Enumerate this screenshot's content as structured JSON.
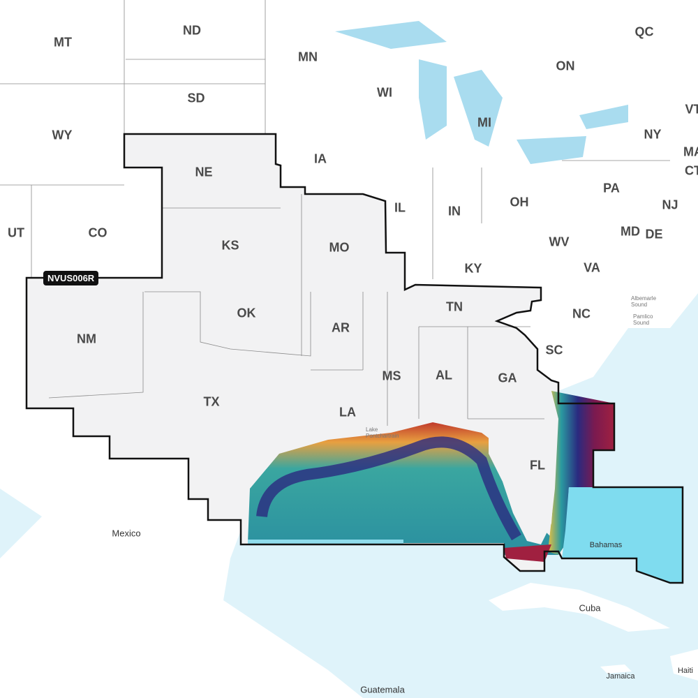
{
  "product_badge": "NVUS006R",
  "colors": {
    "water": "#dff3fa",
    "land": "#ffffff",
    "coverage_fill": "#f2f2f3",
    "coverage_border": "#111111",
    "shallow_bank": "#7fdcef"
  },
  "states": {
    "MT": "MT",
    "ND": "ND",
    "MN": "MN",
    "QC": "QC",
    "ON": "ON",
    "WI": "WI",
    "SD": "SD",
    "WY": "WY",
    "MI": "MI",
    "NY": "NY",
    "VT": "VT",
    "MA": "MA",
    "CT": "CT",
    "IA": "IA",
    "NE": "NE",
    "PA": "PA",
    "NJ": "NJ",
    "UT": "UT",
    "CO": "CO",
    "IL": "IL",
    "IN": "IN",
    "OH": "OH",
    "KS": "KS",
    "MO": "MO",
    "WV": "WV",
    "MD": "MD",
    "DE": "DE",
    "VA": "VA",
    "KY": "KY",
    "TN": "TN",
    "NC": "NC",
    "NM": "NM",
    "OK": "OK",
    "AR": "AR",
    "SC": "SC",
    "MS": "MS",
    "AL": "AL",
    "GA": "GA",
    "TX": "TX",
    "LA": "LA",
    "FL": "FL"
  },
  "places": {
    "mexico": "Mexico",
    "bahamas": "Bahamas",
    "cuba": "Cuba",
    "jamaica": "Jamaica",
    "haiti": "Haiti",
    "guatemala": "Guatemala"
  },
  "water_bodies": {
    "albemarle": "Albemarle Sound",
    "pamlico": "Pamlico Sound",
    "pontchartrain": "Lake Pontchartrain"
  }
}
